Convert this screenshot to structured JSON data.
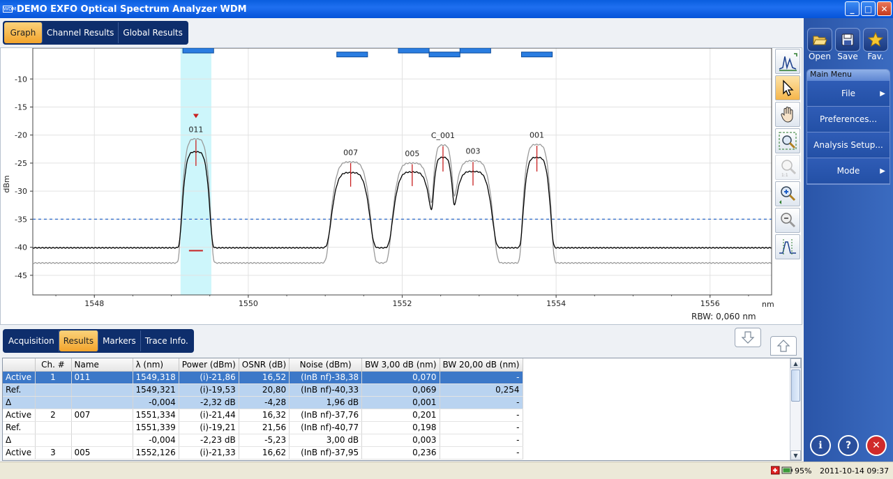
{
  "window": {
    "title": "DEMO EXFO Optical Spectrum Analyzer WDM",
    "app_icon_text": "WDM",
    "minimize": "_",
    "maximize": "□",
    "close": "✕"
  },
  "top_tabs": [
    "Graph",
    "Channel Results",
    "Global Results"
  ],
  "top_tab_active": "Graph",
  "bottom_tabs": [
    "Acquisition",
    "Results",
    "Markers",
    "Trace Info."
  ],
  "bottom_tab_active": "Results",
  "graph": {
    "rbw_label": "RBW: 0,060 nm",
    "x_unit": "nm",
    "y_label": "dBm"
  },
  "chart_data": {
    "type": "line",
    "xlabel": "nm",
    "ylabel": "dBm",
    "xlim": [
      1547.2,
      1556.8
    ],
    "ylim": [
      -48.5,
      -4.5
    ],
    "x_ticks": [
      1548,
      1550,
      1552,
      1554,
      1556
    ],
    "y_ticks": [
      -10,
      -15,
      -20,
      -25,
      -30,
      -35,
      -40,
      -45
    ],
    "threshold_dbm": -35,
    "peaks": [
      {
        "label": "011",
        "x": 1549.32,
        "peak": -20.7,
        "active_peak": -23.0,
        "width": 0.13
      },
      {
        "label": "007",
        "x": 1551.33,
        "peak": -24.8,
        "active_peak": -26.7,
        "width": 0.19
      },
      {
        "label": "005",
        "x": 1552.13,
        "peak": -25.0,
        "active_peak": -26.6,
        "width": 0.19
      },
      {
        "label": "C_001",
        "x": 1552.53,
        "peak": -21.8,
        "active_peak": -24.0,
        "width": 0.1
      },
      {
        "label": "003",
        "x": 1552.92,
        "peak": -24.6,
        "active_peak": -26.5,
        "width": 0.19
      },
      {
        "label": "001",
        "x": 1553.75,
        "peak": -21.7,
        "active_peak": -24.0,
        "width": 0.13
      }
    ],
    "series": [
      {
        "name": "Active",
        "color": "#000000",
        "baseline": -40.1
      },
      {
        "name": "Ref.",
        "color": "#9a9a9a",
        "baseline": -42.8
      }
    ],
    "channel_bars": [
      {
        "x1": 1549.15,
        "x2": 1549.55,
        "y": -5.0
      },
      {
        "x1": 1551.15,
        "x2": 1551.55,
        "y": -5.7
      },
      {
        "x1": 1551.95,
        "x2": 1552.35,
        "y": -5.0
      },
      {
        "x1": 1552.35,
        "x2": 1552.75,
        "y": -5.7
      },
      {
        "x1": 1552.75,
        "x2": 1553.15,
        "y": -5.0
      },
      {
        "x1": 1553.55,
        "x2": 1553.95,
        "y": -5.7
      }
    ],
    "highlight_range": [
      1549.12,
      1549.52
    ]
  },
  "results_table": {
    "headers": [
      "",
      "Ch. #",
      "Name",
      "λ (nm)",
      "Power (dBm)",
      "OSNR (dB)",
      "Noise (dBm)",
      "BW 3,00 dB (nm)",
      "BW 20,00 dB (nm)"
    ],
    "rows": [
      [
        "Active",
        "1",
        "011",
        "1549,318",
        "(i)-21,86",
        "16,52",
        "(InB nf)-38,38",
        "0,070",
        "-"
      ],
      [
        "Ref.",
        "",
        "",
        "1549,321",
        "(i)-19,53",
        "20,80",
        "(InB nf)-40,33",
        "0,069",
        "0,254"
      ],
      [
        "Δ",
        "",
        "",
        "-0,004",
        "-2,32 dB",
        "-4,28",
        "1,96 dB",
        "0,001",
        "-"
      ],
      [
        "Active",
        "2",
        "007",
        "1551,334",
        "(i)-21,44",
        "16,32",
        "(InB nf)-37,76",
        "0,201",
        "-"
      ],
      [
        "Ref.",
        "",
        "",
        "1551,339",
        "(i)-19,21",
        "21,56",
        "(InB nf)-40,77",
        "0,198",
        "-"
      ],
      [
        "Δ",
        "",
        "",
        "-0,004",
        "-2,23 dB",
        "-5,23",
        "3,00 dB",
        "0,003",
        "-"
      ],
      [
        "Active",
        "3",
        "005",
        "1552,126",
        "(i)-21,33",
        "16,62",
        "(InB nf)-37,95",
        "0,236",
        "-"
      ]
    ]
  },
  "right_panel": {
    "open": "Open",
    "save": "Save",
    "fav": "Fav.",
    "main_menu_title": "Main Menu",
    "menu_items": [
      "File",
      "Preferences...",
      "Analysis Setup...",
      "Mode"
    ]
  },
  "status": {
    "battery": "95%",
    "datetime": "2011-10-14 09:37"
  }
}
